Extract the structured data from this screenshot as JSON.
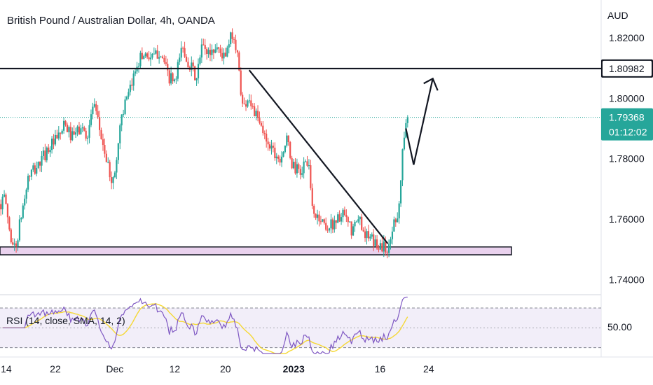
{
  "header": {
    "title": "British Pound / Australian Dollar, 4h, OANDA",
    "currency": "AUD"
  },
  "colors": {
    "up": "#26a69a",
    "down": "#ef5350",
    "rsi_line": "#7e57c2",
    "rsi_sma": "#f5d834",
    "rsi_band": "#ede7f6",
    "support_zone": "#ead2ee",
    "tag_teal": "#26a69a",
    "tag_black": "#131722"
  },
  "chart_data": {
    "type": "candlestick",
    "ylim": [
      1.735,
      1.8325
    ],
    "y_ticks": [
      "1.82000",
      "1.80000",
      "1.78000",
      "1.76000",
      "1.74000"
    ],
    "y_tick_values": [
      1.82,
      1.8,
      1.78,
      1.76,
      1.74
    ],
    "x_ticks": [
      "14",
      "22",
      "Dec",
      "12",
      "20",
      "2023",
      "16",
      "24"
    ],
    "x_tick_bold": [
      "2023"
    ],
    "price_tags": {
      "resistance": {
        "label": "1.80982",
        "value": 1.80982
      },
      "current": {
        "label": "1.79368",
        "value": 1.79368,
        "countdown": "01:12:02"
      }
    },
    "resistance_level": 1.80982,
    "support_zone": [
      1.7482,
      1.7508
    ],
    "trendline": [
      [
        0.482,
        1.8093
      ],
      [
        0.75,
        1.7519
      ]
    ],
    "projection": [
      [
        0.785,
        1.79
      ],
      [
        0.8,
        1.778
      ],
      [
        0.837,
        1.8065
      ]
    ],
    "projection_arrowhead_at": [
      0.837,
      1.8065
    ],
    "price_path_anchors": [
      [
        0.0,
        1.765
      ],
      [
        0.01,
        1.767
      ],
      [
        0.02,
        1.754
      ],
      [
        0.03,
        1.75
      ],
      [
        0.04,
        1.76
      ],
      [
        0.055,
        1.774
      ],
      [
        0.075,
        1.778
      ],
      [
        0.095,
        1.784
      ],
      [
        0.11,
        1.786
      ],
      [
        0.125,
        1.791
      ],
      [
        0.14,
        1.787
      ],
      [
        0.155,
        1.79
      ],
      [
        0.17,
        1.788
      ],
      [
        0.18,
        1.798
      ],
      [
        0.195,
        1.788
      ],
      [
        0.21,
        1.776
      ],
      [
        0.22,
        1.772
      ],
      [
        0.235,
        1.795
      ],
      [
        0.25,
        1.801
      ],
      [
        0.265,
        1.812
      ],
      [
        0.28,
        1.815
      ],
      [
        0.295,
        1.813
      ],
      [
        0.31,
        1.816
      ],
      [
        0.325,
        1.807
      ],
      [
        0.34,
        1.805
      ],
      [
        0.35,
        1.817
      ],
      [
        0.365,
        1.812
      ],
      [
        0.38,
        1.806
      ],
      [
        0.39,
        1.817
      ],
      [
        0.405,
        1.815
      ],
      [
        0.42,
        1.817
      ],
      [
        0.435,
        1.813
      ],
      [
        0.45,
        1.822
      ],
      [
        0.46,
        1.813
      ],
      [
        0.47,
        1.796
      ],
      [
        0.48,
        1.801
      ],
      [
        0.495,
        1.794
      ],
      [
        0.51,
        1.788
      ],
      [
        0.525,
        1.784
      ],
      [
        0.54,
        1.78
      ],
      [
        0.555,
        1.786
      ],
      [
        0.565,
        1.778
      ],
      [
        0.58,
        1.775
      ],
      [
        0.595,
        1.78
      ],
      [
        0.605,
        1.762
      ],
      [
        0.62,
        1.76
      ],
      [
        0.635,
        1.757
      ],
      [
        0.65,
        1.76
      ],
      [
        0.665,
        1.761
      ],
      [
        0.68,
        1.756
      ],
      [
        0.695,
        1.76
      ],
      [
        0.71,
        1.754
      ],
      [
        0.725,
        1.752
      ],
      [
        0.74,
        1.751
      ],
      [
        0.752,
        1.75
      ],
      [
        0.762,
        1.76
      ],
      [
        0.77,
        1.762
      ],
      [
        0.775,
        1.772
      ],
      [
        0.78,
        1.787
      ],
      [
        0.785,
        1.79
      ],
      [
        0.79,
        1.7937
      ]
    ],
    "rsi": {
      "label": "RSI (14, close, SMA, 14, 2)",
      "tick": "50.00",
      "upper": 70,
      "mid": 50,
      "lower": 30,
      "ylim": [
        22,
        82
      ]
    }
  }
}
